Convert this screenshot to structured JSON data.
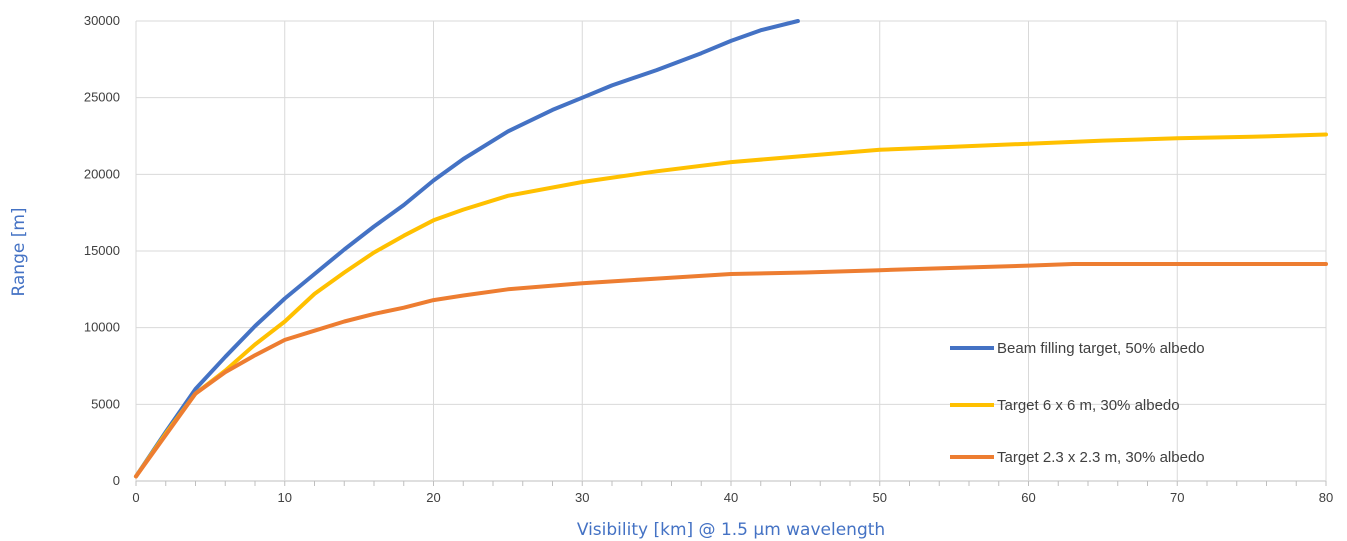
{
  "chart_data": {
    "type": "line",
    "title": "",
    "xlabel": "Visibility [km] @ 1.5 µm wavelength",
    "ylabel": "Range [m]",
    "xlim": [
      0,
      80
    ],
    "ylim": [
      0,
      30000
    ],
    "x_ticks": [
      "0",
      "10",
      "20",
      "30",
      "40",
      "50",
      "60",
      "70",
      "80"
    ],
    "y_ticks": [
      "0",
      "5000",
      "10000",
      "15000",
      "20000",
      "25000",
      "30000"
    ],
    "grid": true,
    "legend_position": "bottom-right",
    "label_color": "#4472c4",
    "series": [
      {
        "name": "Beam filling target, 50% albedo",
        "color": "#4472c4",
        "x": [
          0,
          2,
          4,
          6,
          8,
          10,
          12,
          14,
          16,
          18,
          20,
          22,
          25,
          28,
          30,
          32,
          35,
          38,
          40,
          42,
          44.5
        ],
        "y": [
          300,
          3200,
          6000,
          8100,
          10100,
          11900,
          13500,
          15100,
          16600,
          18000,
          19600,
          21000,
          22800,
          24200,
          25000,
          25800,
          26800,
          27900,
          28700,
          29400,
          30000
        ]
      },
      {
        "name": "Target 6 x 6 m, 30% albedo",
        "color": "#ffc000",
        "x": [
          0,
          2,
          4,
          6,
          8,
          10,
          12,
          14,
          16,
          18,
          20,
          22,
          25,
          30,
          35,
          40,
          45,
          50,
          55,
          60,
          65,
          70,
          75,
          80
        ],
        "y": [
          300,
          3100,
          5700,
          7200,
          8900,
          10400,
          12200,
          13600,
          14900,
          16000,
          17000,
          17700,
          18600,
          19500,
          20200,
          20800,
          21200,
          21600,
          21800,
          22000,
          22200,
          22350,
          22450,
          22600
        ]
      },
      {
        "name": "Target 2.3 x 2.3 m, 30% albedo",
        "color": "#ed7d31",
        "x": [
          0,
          2,
          4,
          6,
          8,
          10,
          12,
          14,
          16,
          18,
          20,
          22,
          25,
          30,
          35,
          40,
          45,
          50,
          55,
          60,
          63,
          70,
          80
        ],
        "y": [
          300,
          3000,
          5700,
          7100,
          8200,
          9200,
          9800,
          10400,
          10900,
          11300,
          11800,
          12100,
          12500,
          12900,
          13200,
          13500,
          13600,
          13750,
          13900,
          14050,
          14150,
          14150,
          14150
        ]
      }
    ]
  }
}
